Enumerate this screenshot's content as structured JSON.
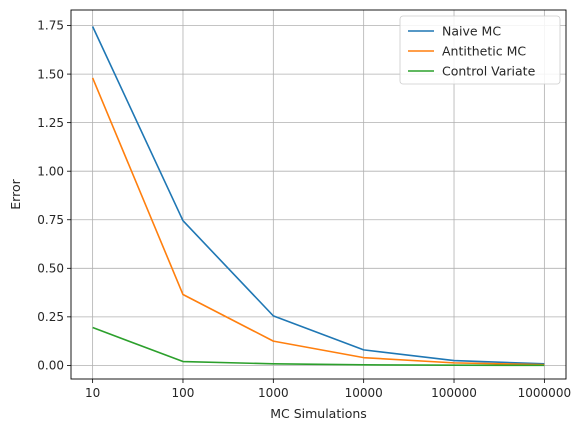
{
  "chart_data": {
    "type": "line",
    "title": "",
    "xlabel": "MC Simulations",
    "ylabel": "Error",
    "categories": [
      "10",
      "100",
      "1000",
      "10000",
      "100000",
      "1000000"
    ],
    "ylim": [
      -0.07,
      1.83
    ],
    "yticks": [
      "0.00",
      "0.25",
      "0.50",
      "0.75",
      "1.00",
      "1.25",
      "1.50",
      "1.75"
    ],
    "yticks_values": [
      0,
      0.25,
      0.5,
      0.75,
      1.0,
      1.25,
      1.5,
      1.75
    ],
    "grid": true,
    "legend_position": "top-right",
    "series": [
      {
        "name": "Naive MC",
        "color": "#1f77b4",
        "values": [
          1.745,
          0.745,
          0.255,
          0.08,
          0.025,
          0.008
        ]
      },
      {
        "name": "Antithetic MC",
        "color": "#ff7f0e",
        "values": [
          1.48,
          0.365,
          0.125,
          0.04,
          0.013,
          0.004
        ]
      },
      {
        "name": "Control Variate",
        "color": "#2ca02c",
        "values": [
          0.195,
          0.02,
          0.008,
          0.003,
          0.001,
          0.0005
        ]
      }
    ]
  }
}
